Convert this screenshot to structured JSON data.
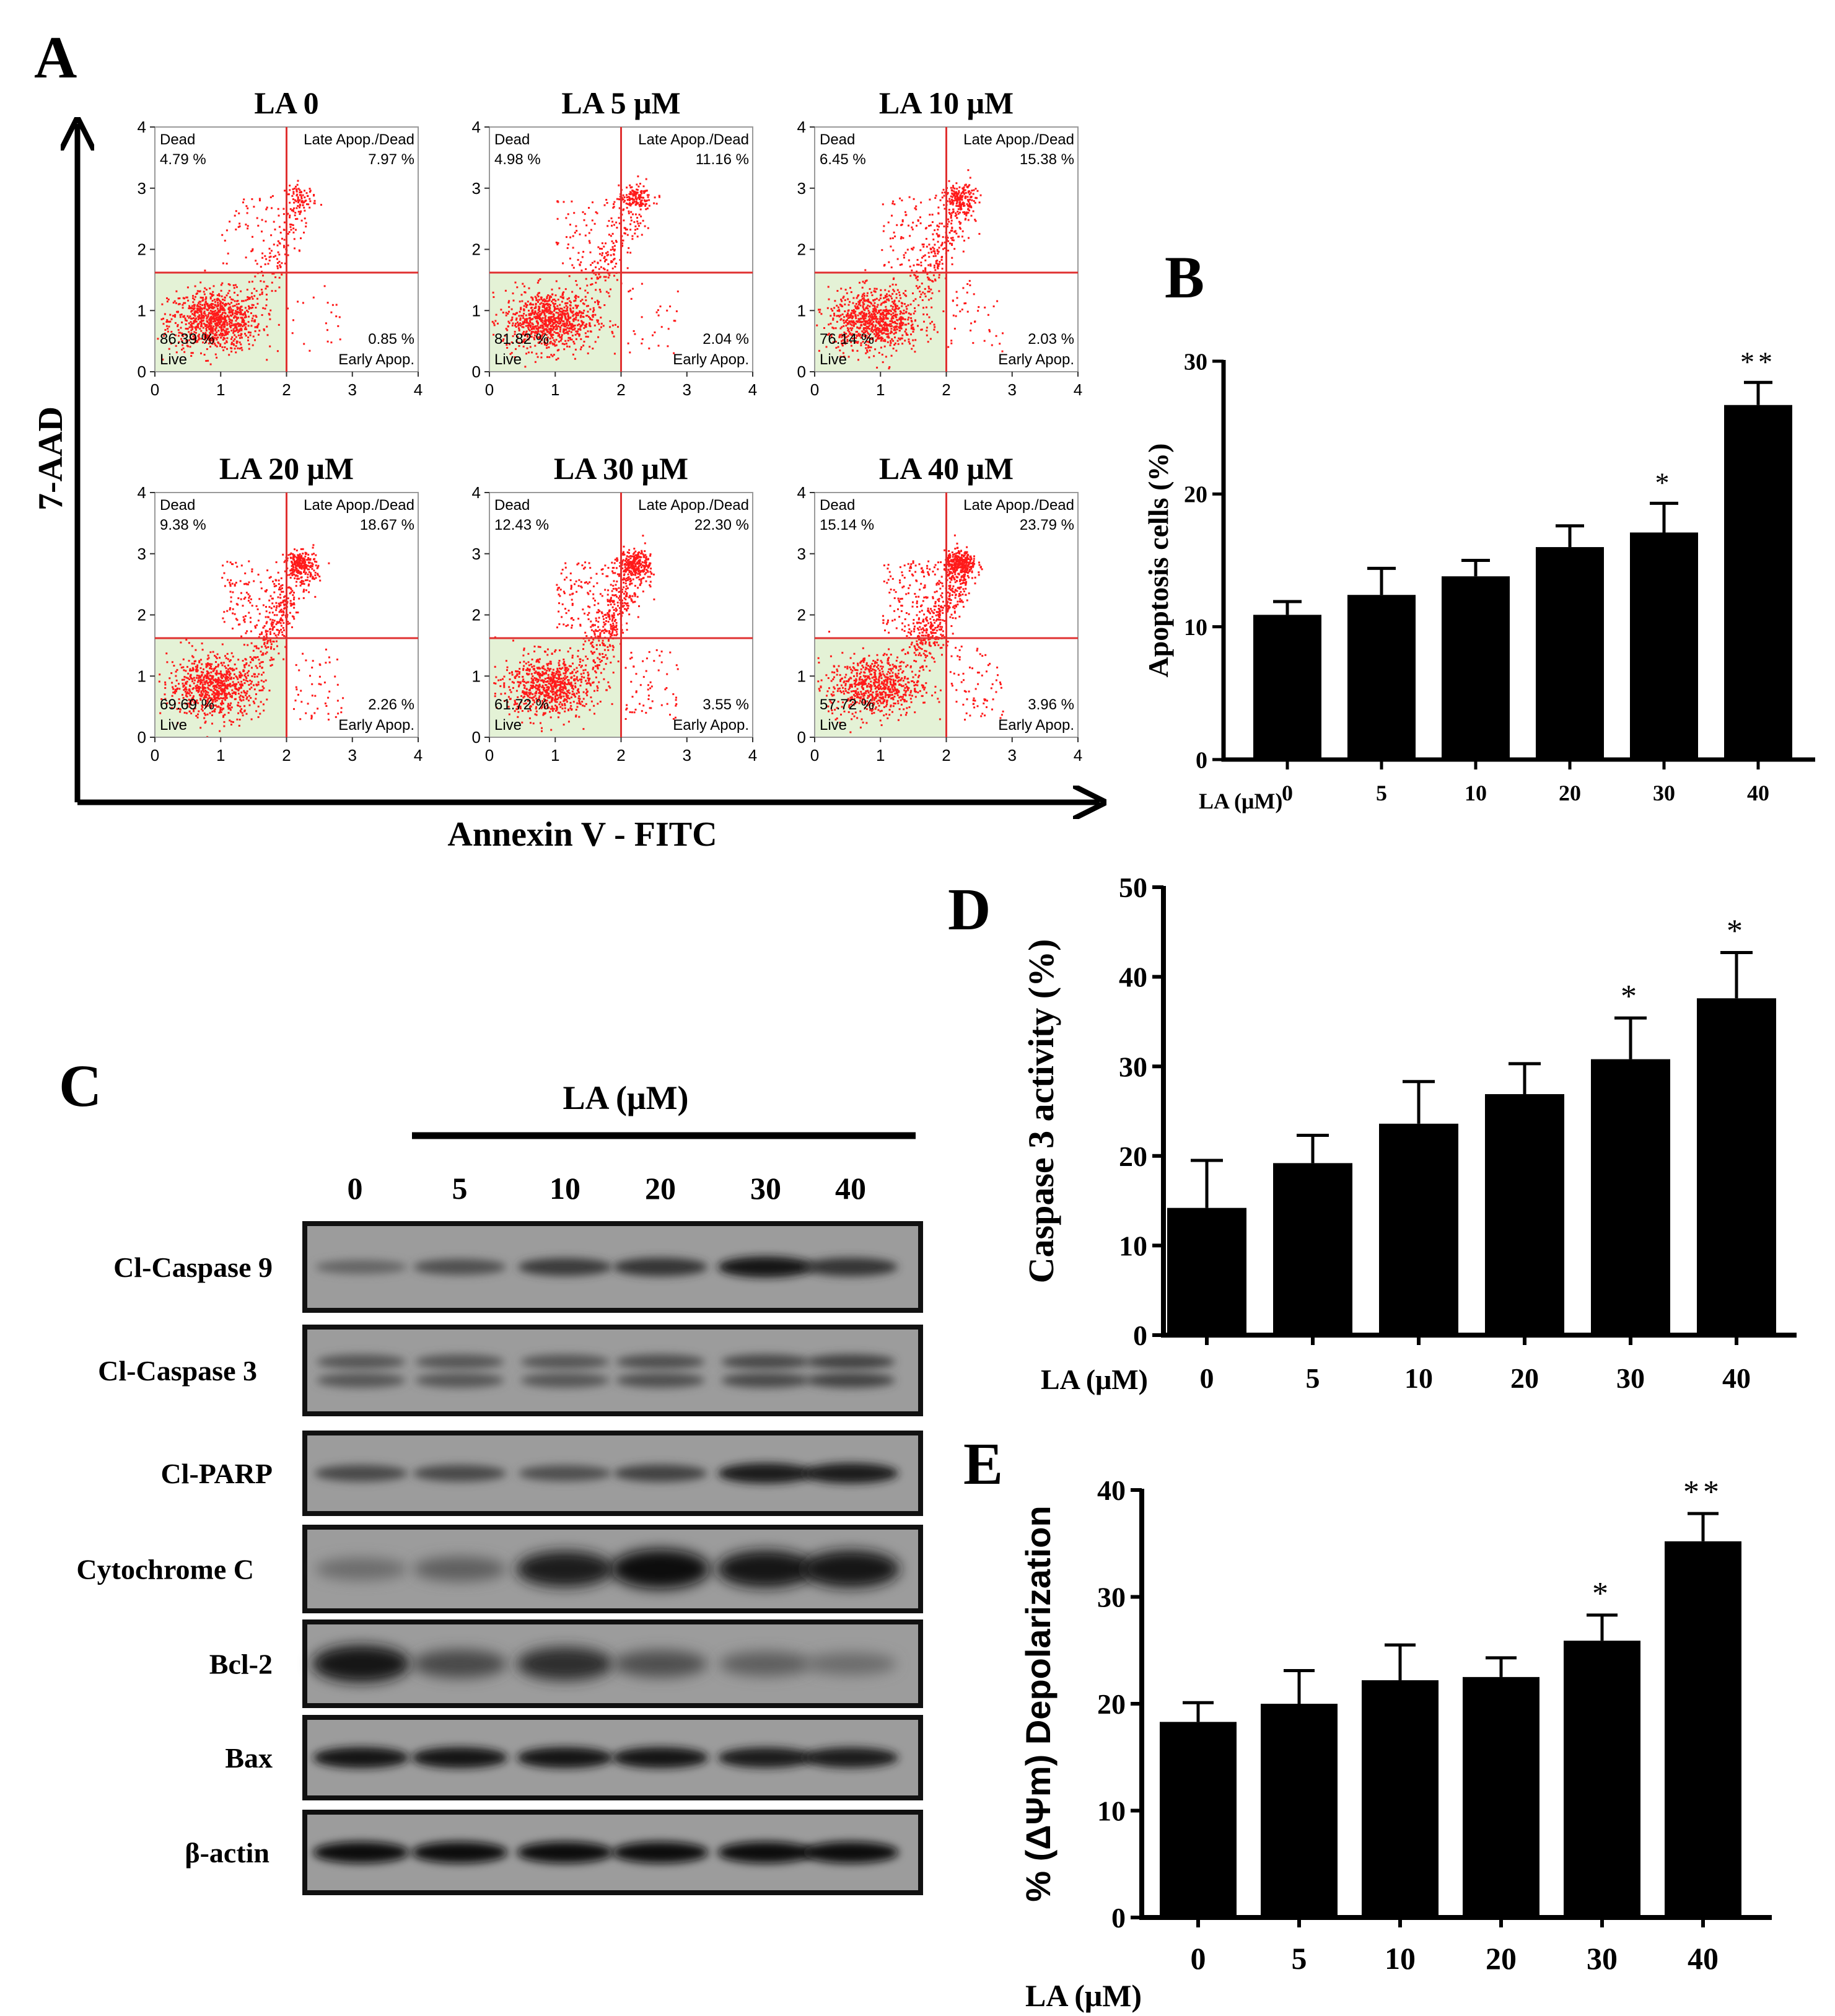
{
  "panels": {
    "A": "A",
    "B": "B",
    "C": "C",
    "D": "D",
    "E": "E"
  },
  "flow": {
    "y_axis_label": "7-AAD",
    "x_axis_label": "Annexin V - FITC",
    "ticks": [
      "0",
      "1",
      "2",
      "3",
      "4"
    ],
    "plots": [
      {
        "title": "LA 0",
        "dead": "4.79 %",
        "late": "7.97 %",
        "early": "0.85 %",
        "live": "86.39 %"
      },
      {
        "title": "LA 5 μM",
        "dead": "4.98 %",
        "late": "11.16 %",
        "early": "2.04 %",
        "live": "81.82 %"
      },
      {
        "title": "LA 10 μM",
        "dead": "6.45 %",
        "late": "15.38 %",
        "early": "2.03 %",
        "live": "76.14 %"
      },
      {
        "title": "LA 20 μM",
        "dead": "9.38 %",
        "late": "18.67 %",
        "early": "2.26 %",
        "live": "69.69 %"
      },
      {
        "title": "LA 30 μM",
        "dead": "12.43 %",
        "late": "22.30 %",
        "early": "3.55 %",
        "live": "61.72 %"
      },
      {
        "title": "LA 40 μM",
        "dead": "15.14 %",
        "late": "23.79 %",
        "early": "3.96 %",
        "live": "57.72 %"
      }
    ],
    "quadrant_labels": {
      "dead": "Dead",
      "late": "Late Apop./Dead",
      "early": "Early Apop.",
      "live": "Live"
    },
    "colors": {
      "dots": "#ff1a1a",
      "gate_line": "#e03030",
      "live_fill": "#e4f2d6"
    }
  },
  "western": {
    "title": "LA (μM)",
    "lanes": [
      "0",
      "5",
      "10",
      "20",
      "30",
      "40"
    ],
    "rows": [
      {
        "label": "Cl-Caspase 9",
        "intensity": [
          0.35,
          0.5,
          0.65,
          0.7,
          0.9,
          0.7
        ],
        "style": "single"
      },
      {
        "label": "Cl-Caspase 3",
        "intensity": [
          0.45,
          0.45,
          0.45,
          0.5,
          0.55,
          0.6
        ],
        "style": "double"
      },
      {
        "label": "Cl-PARP",
        "intensity": [
          0.55,
          0.55,
          0.5,
          0.6,
          0.85,
          0.85
        ],
        "style": "single"
      },
      {
        "label": "Cytochrome C",
        "intensity": [
          0.3,
          0.4,
          0.85,
          1.0,
          0.9,
          0.9
        ],
        "style": "thick"
      },
      {
        "label": "Bcl-2",
        "intensity": [
          0.9,
          0.55,
          0.75,
          0.5,
          0.4,
          0.3
        ],
        "style": "thick"
      },
      {
        "label": "Bax",
        "intensity": [
          0.9,
          0.9,
          0.9,
          0.9,
          0.85,
          0.85
        ],
        "style": "single"
      },
      {
        "label": "β-actin",
        "intensity": [
          0.95,
          0.95,
          0.95,
          0.95,
          0.95,
          0.95
        ],
        "style": "single"
      }
    ]
  },
  "chart_data": [
    {
      "id": "B",
      "type": "bar",
      "xlabel": "LA (μM)",
      "ylabel": "Apoptosis cells (%)",
      "categories": [
        "0",
        "5",
        "10",
        "20",
        "30",
        "40"
      ],
      "values": [
        10.9,
        12.4,
        13.8,
        16.0,
        17.1,
        26.7
      ],
      "errors": [
        1.0,
        2.0,
        1.2,
        1.6,
        2.2,
        1.7
      ],
      "significance": [
        "",
        "",
        "",
        "",
        "*",
        "**"
      ],
      "ylim": [
        0,
        30
      ],
      "yticks": [
        "0",
        "10",
        "20",
        "30"
      ]
    },
    {
      "id": "D",
      "type": "bar",
      "xlabel": "LA (μM)",
      "ylabel": "Caspase 3 activity (%)",
      "categories": [
        "0",
        "5",
        "10",
        "20",
        "30",
        "40"
      ],
      "values": [
        14.2,
        19.2,
        23.6,
        26.9,
        30.8,
        37.6
      ],
      "errors": [
        5.3,
        3.1,
        4.7,
        3.4,
        4.6,
        5.1
      ],
      "significance": [
        "",
        "",
        "",
        "",
        "*",
        "*"
      ],
      "ylim": [
        0,
        50
      ],
      "yticks": [
        "0",
        "10",
        "20",
        "30",
        "40",
        "50"
      ]
    },
    {
      "id": "E",
      "type": "bar",
      "xlabel": "LA (μM)",
      "ylabel": "% (ΔΨm) Depolarization",
      "categories": [
        "0",
        "5",
        "10",
        "20",
        "30",
        "40"
      ],
      "values": [
        18.3,
        20.0,
        22.2,
        22.5,
        25.9,
        35.2
      ],
      "errors": [
        1.8,
        3.1,
        3.3,
        1.8,
        2.4,
        2.6
      ],
      "significance": [
        "",
        "",
        "",
        "",
        "*",
        "**"
      ],
      "ylim": [
        0,
        40
      ],
      "yticks": [
        "0",
        "10",
        "20",
        "30",
        "40"
      ]
    }
  ]
}
